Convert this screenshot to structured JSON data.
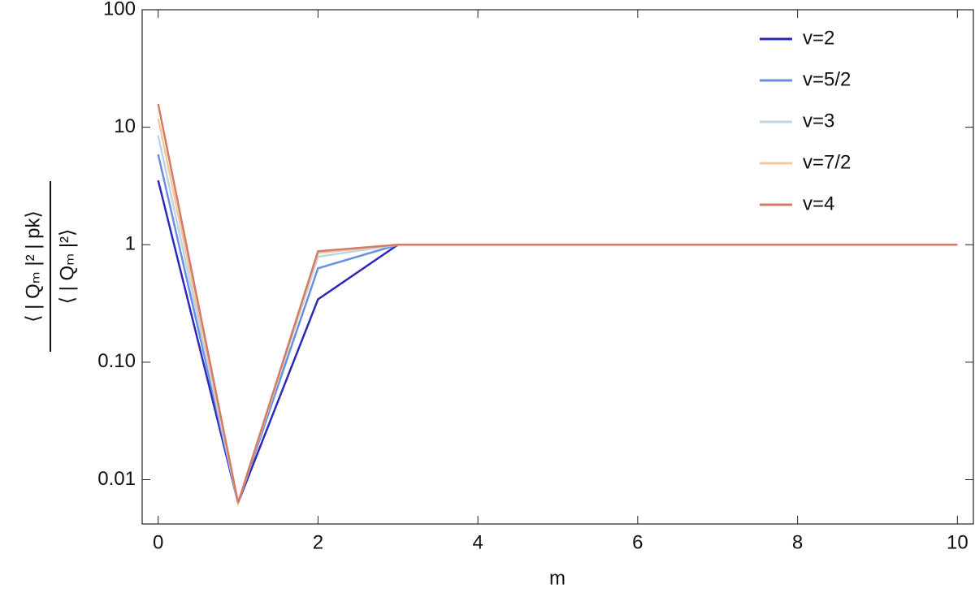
{
  "chart_data": {
    "type": "line",
    "x_label": "m",
    "y_label": {
      "numerator": "⟨ | Qₘ |² | pk⟩",
      "denominator": "⟨ | Qₘ |²⟩"
    },
    "x": [
      0,
      1,
      2,
      3,
      4,
      5,
      6,
      7,
      8,
      9,
      10
    ],
    "series": [
      {
        "name": "v=2",
        "color": "#2b2ab8",
        "values": [
          3.53,
          0.00635,
          0.343,
          1,
          1,
          1,
          1,
          1,
          1,
          1,
          1
        ]
      },
      {
        "name": "v=5/2",
        "color": "#6b8fdf",
        "values": [
          5.88,
          0.00635,
          0.63,
          1,
          1,
          1,
          1,
          1,
          1,
          1,
          1
        ]
      },
      {
        "name": "v=3",
        "color": "#bcd6e8",
        "values": [
          8.5,
          0.00635,
          0.79,
          1,
          1,
          1,
          1,
          1,
          1,
          1,
          1
        ]
      },
      {
        "name": "v=7/2",
        "color": "#f0c9a0",
        "values": [
          11.9,
          0.00635,
          0.85,
          1,
          1,
          1,
          1,
          1,
          1,
          1,
          1
        ]
      },
      {
        "name": "v=4",
        "color": "#d47a66",
        "values": [
          15.8,
          0.00635,
          0.88,
          1,
          1,
          1,
          1,
          1,
          1,
          1,
          1
        ]
      }
    ],
    "xlim": [
      -0.2,
      10.2
    ],
    "xticks": [
      0,
      2,
      4,
      6,
      8,
      10
    ],
    "ylim": [
      0.0042,
      100
    ],
    "ylog": true,
    "yticks": [
      0.01,
      {
        "value": 0.1,
        "label": "0.10"
      },
      1,
      10,
      100
    ],
    "legend": "upper right",
    "grid": false
  }
}
